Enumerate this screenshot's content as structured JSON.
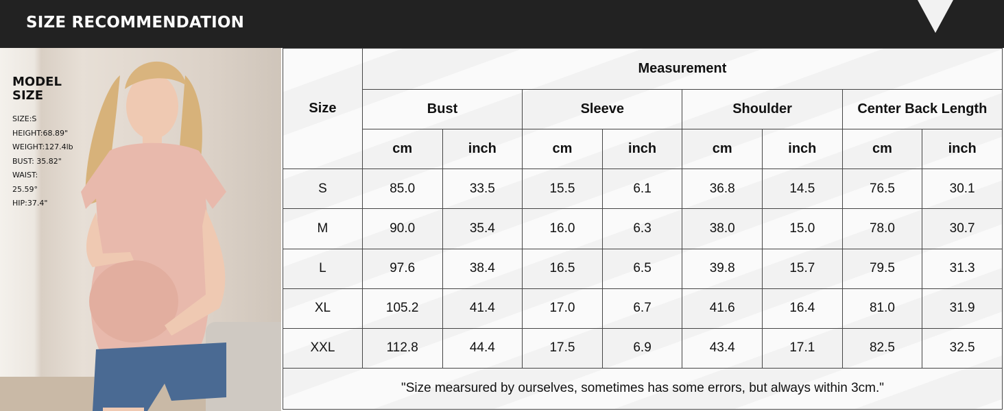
{
  "header": {
    "title": "SIZE RECOMMENDATION"
  },
  "model": {
    "heading_line1": "MODEL",
    "heading_line2": "SIZE",
    "specs": [
      "SIZE:S",
      "HEIGHT:68.89\"",
      "WEIGHT:127.4lb",
      "BUST: 35.82\"",
      "WAIST:",
      "25.59°",
      "HIP:37.4\""
    ]
  },
  "table": {
    "size_header": "Size",
    "group_header": "Measurement",
    "measures": [
      "Bust",
      "Sleeve",
      "Shoulder",
      "Center Back Length"
    ],
    "units": [
      "cm",
      "inch"
    ],
    "rows": [
      {
        "size": "S",
        "values": [
          "85.0",
          "33.5",
          "15.5",
          "6.1",
          "36.8",
          "14.5",
          "76.5",
          "30.1"
        ]
      },
      {
        "size": "M",
        "values": [
          "90.0",
          "35.4",
          "16.0",
          "6.3",
          "38.0",
          "15.0",
          "78.0",
          "30.7"
        ]
      },
      {
        "size": "L",
        "values": [
          "97.6",
          "38.4",
          "16.5",
          "6.5",
          "39.8",
          "15.7",
          "79.5",
          "31.3"
        ]
      },
      {
        "size": "XL",
        "values": [
          "105.2",
          "41.4",
          "17.0",
          "6.7",
          "41.6",
          "16.4",
          "81.0",
          "31.9"
        ]
      },
      {
        "size": "XXL",
        "values": [
          "112.8",
          "44.4",
          "17.5",
          "6.9",
          "43.4",
          "17.1",
          "82.5",
          "32.5"
        ]
      }
    ],
    "note": "\"Size mearsured by ourselves, sometimes has some errors, but always within 3cm.\""
  },
  "colors": {
    "bar": "#222222",
    "shirt": "#e8b9ac",
    "denim": "#4a6a93"
  }
}
